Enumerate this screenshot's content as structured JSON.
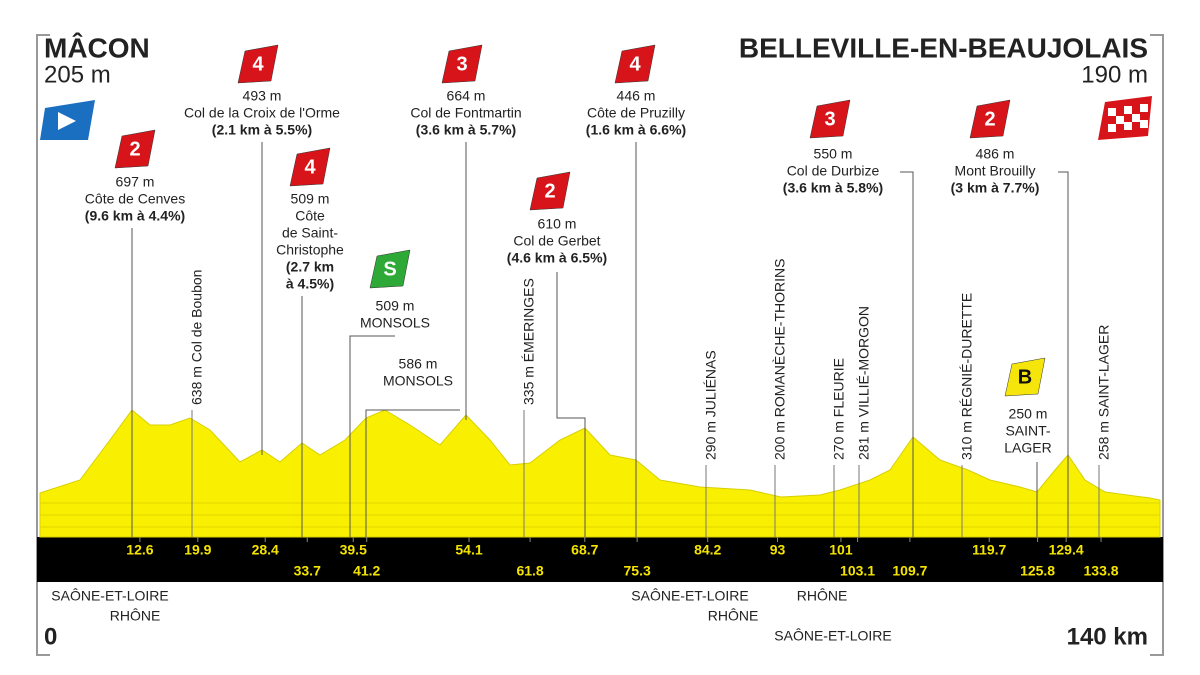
{
  "start": {
    "name": "MÂCON",
    "altitude": "205 m",
    "km": "0"
  },
  "finish": {
    "name": "BELLEVILLE-EN-BEAUJOLAIS",
    "altitude": "190 m",
    "km": "140 km"
  },
  "climbs": [
    {
      "badge": "2",
      "badge_color": "#d7141a",
      "badge_text_color": "#ffffff",
      "lines": [
        "697 m",
        "Côte de Cenves"
      ],
      "bold": [
        "(9.6 km à 4.4%)"
      ]
    },
    {
      "badge": "4",
      "badge_color": "#d7141a",
      "badge_text_color": "#ffffff",
      "lines": [
        "493 m",
        "Col de la Croix de l'Orme"
      ],
      "bold": [
        "(2.1 km à 5.5%)"
      ]
    },
    {
      "badge": "4",
      "badge_color": "#d7141a",
      "badge_text_color": "#ffffff",
      "lines": [
        "509 m",
        "Côte",
        "de Saint-",
        "Christophe"
      ],
      "bold": [
        "(2.7 km",
        "à 4.5%)"
      ]
    },
    {
      "badge": "S",
      "badge_color": "#2ea836",
      "badge_text_color": "#ffffff",
      "lines": [
        "509 m",
        "MONSOLS"
      ],
      "bold": []
    },
    {
      "lines": [
        "586 m",
        "MONSOLS"
      ],
      "bold": []
    },
    {
      "badge": "3",
      "badge_color": "#d7141a",
      "badge_text_color": "#ffffff",
      "lines": [
        "664 m",
        "Col de Fontmartin"
      ],
      "bold": [
        "(3.6 km à 5.7%)"
      ]
    },
    {
      "badge": "2",
      "badge_color": "#d7141a",
      "badge_text_color": "#ffffff",
      "lines": [
        "610 m",
        "Col de Gerbet"
      ],
      "bold": [
        "(4.6 km à 6.5%)"
      ]
    },
    {
      "badge": "4",
      "badge_color": "#d7141a",
      "badge_text_color": "#ffffff",
      "lines": [
        "446 m",
        "Côte de Pruzilly"
      ],
      "bold": [
        "(1.6 km à 6.6%)"
      ]
    },
    {
      "badge": "3",
      "badge_color": "#d7141a",
      "badge_text_color": "#ffffff",
      "lines": [
        "550 m",
        "Col de Durbize"
      ],
      "bold": [
        "(3.6 km à 5.8%)"
      ]
    },
    {
      "badge": "2",
      "badge_color": "#d7141a",
      "badge_text_color": "#ffffff",
      "lines": [
        "486 m",
        "Mont Brouilly"
      ],
      "bold": [
        "(3 km à 7.7%)"
      ]
    },
    {
      "badge": "B",
      "badge_color": "#f5e50a",
      "badge_text_color": "#111111",
      "lines": [
        "250 m",
        "SAINT-",
        "LAGER"
      ],
      "bold": []
    }
  ],
  "points": [
    "638 m Col de Boubon",
    "335 m ÉMERINGES",
    "290 m JULIÉNAS",
    "200 m ROMANÈCHE-THORINS",
    "270 m FLEURIE",
    "281 m VILLIÉ-MORGON",
    "310 m RÉGNIÉ-DURETTE",
    "258 m SAINT-LAGER"
  ],
  "km_markers_top": [
    12.6,
    19.9,
    28.4,
    39.5,
    54.1,
    68.7,
    84.2,
    93,
    101,
    119.7,
    129.4
  ],
  "km_markers_bottom": [
    33.7,
    41.2,
    61.8,
    75.3,
    103.1,
    109.7,
    125.8,
    133.8
  ],
  "regions": [
    "SAÔNE-ET-LOIRE",
    "RHÔNE",
    "SAÔNE-ET-LOIRE",
    "RHÔNE",
    "RHÔNE",
    "SAÔNE-ET-LOIRE"
  ]
}
